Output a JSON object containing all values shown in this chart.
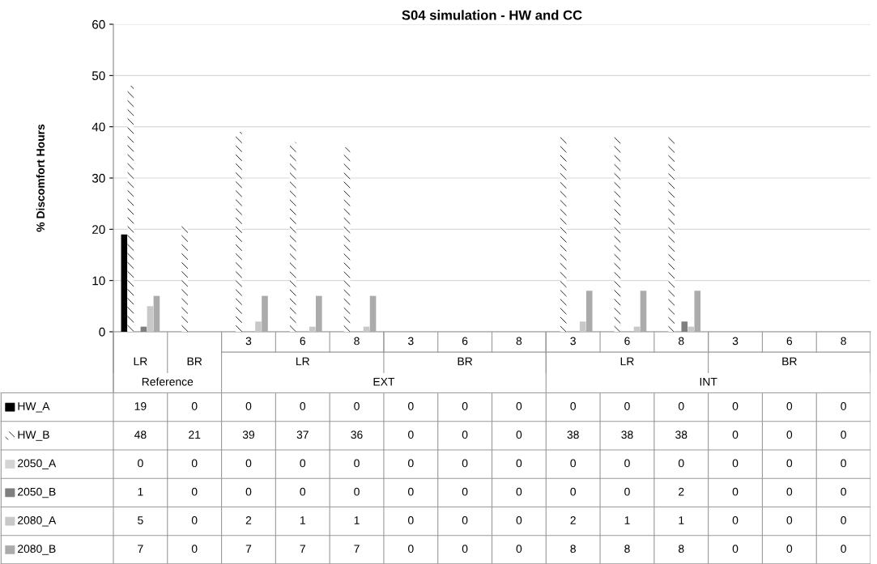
{
  "chart_data": {
    "type": "bar",
    "title": "S04 simulation - HW and CC",
    "ylabel": "% Discomfort Hours",
    "categories": [
      "LR",
      "BR",
      "3",
      "6",
      "8",
      "3",
      "6",
      "8",
      "3",
      "6",
      "8",
      "3",
      "6",
      "8"
    ],
    "annotations": [
      "Reference",
      "EXT",
      "INT",
      "LR",
      "BR",
      "LR",
      "BR"
    ],
    "series": [
      {
        "name": "HW_A",
        "color": "#000000",
        "values": [
          19,
          0,
          0,
          0,
          0,
          0,
          0,
          0,
          0,
          0,
          0,
          0,
          0,
          0
        ]
      },
      {
        "name": "HW_B",
        "color": "#ffffff",
        "values": [
          48,
          21,
          39,
          37,
          36,
          0,
          0,
          0,
          38,
          38,
          38,
          0,
          0,
          0
        ]
      },
      {
        "name": "2050_A",
        "color": "#d4d4d4",
        "values": [
          0,
          0,
          0,
          0,
          0,
          0,
          0,
          0,
          0,
          0,
          0,
          0,
          0,
          0
        ]
      },
      {
        "name": "2050_B",
        "color": "#7f7f7f",
        "values": [
          1,
          0,
          0,
          0,
          0,
          0,
          0,
          0,
          0,
          0,
          2,
          0,
          0,
          0
        ]
      },
      {
        "name": "2080_A",
        "color": "#c8c8c8",
        "values": [
          5,
          0,
          2,
          1,
          1,
          0,
          0,
          0,
          2,
          1,
          1,
          0,
          0,
          0
        ]
      },
      {
        "name": "2080_B",
        "color": "#ababab",
        "values": [
          7,
          0,
          7,
          7,
          7,
          0,
          0,
          0,
          8,
          8,
          8,
          0,
          0,
          0
        ]
      }
    ],
    "ylim": [
      0,
      60
    ],
    "yticks": [
      0,
      10,
      20,
      30,
      40,
      50,
      60
    ],
    "grid": "y",
    "legend": "bottom left",
    "data_labels": true
  }
}
